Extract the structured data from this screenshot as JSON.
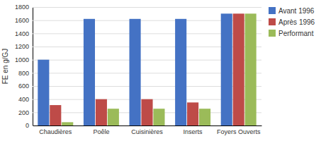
{
  "chart_data": {
    "type": "bar",
    "categories": [
      "Chaudières",
      "Poêle",
      "Cuisinières",
      "Inserts",
      "Foyers Ouverts"
    ],
    "series": [
      {
        "name": "Avant 1996",
        "color": "#4472C4",
        "values": [
          1000,
          1620,
          1620,
          1620,
          1700
        ]
      },
      {
        "name": "Après 1996",
        "color": "#BE4B48",
        "values": [
          310,
          400,
          400,
          350,
          1700
        ]
      },
      {
        "name": "Performant",
        "color": "#9BBB59",
        "values": [
          50,
          255,
          255,
          255,
          1700
        ]
      }
    ],
    "ylabel": "FE en g/GJ",
    "ylim": [
      0,
      1800
    ],
    "yticks": [
      0,
      200,
      400,
      600,
      800,
      1000,
      1200,
      1400,
      1600,
      1800
    ],
    "grid": true,
    "legend": "right"
  }
}
